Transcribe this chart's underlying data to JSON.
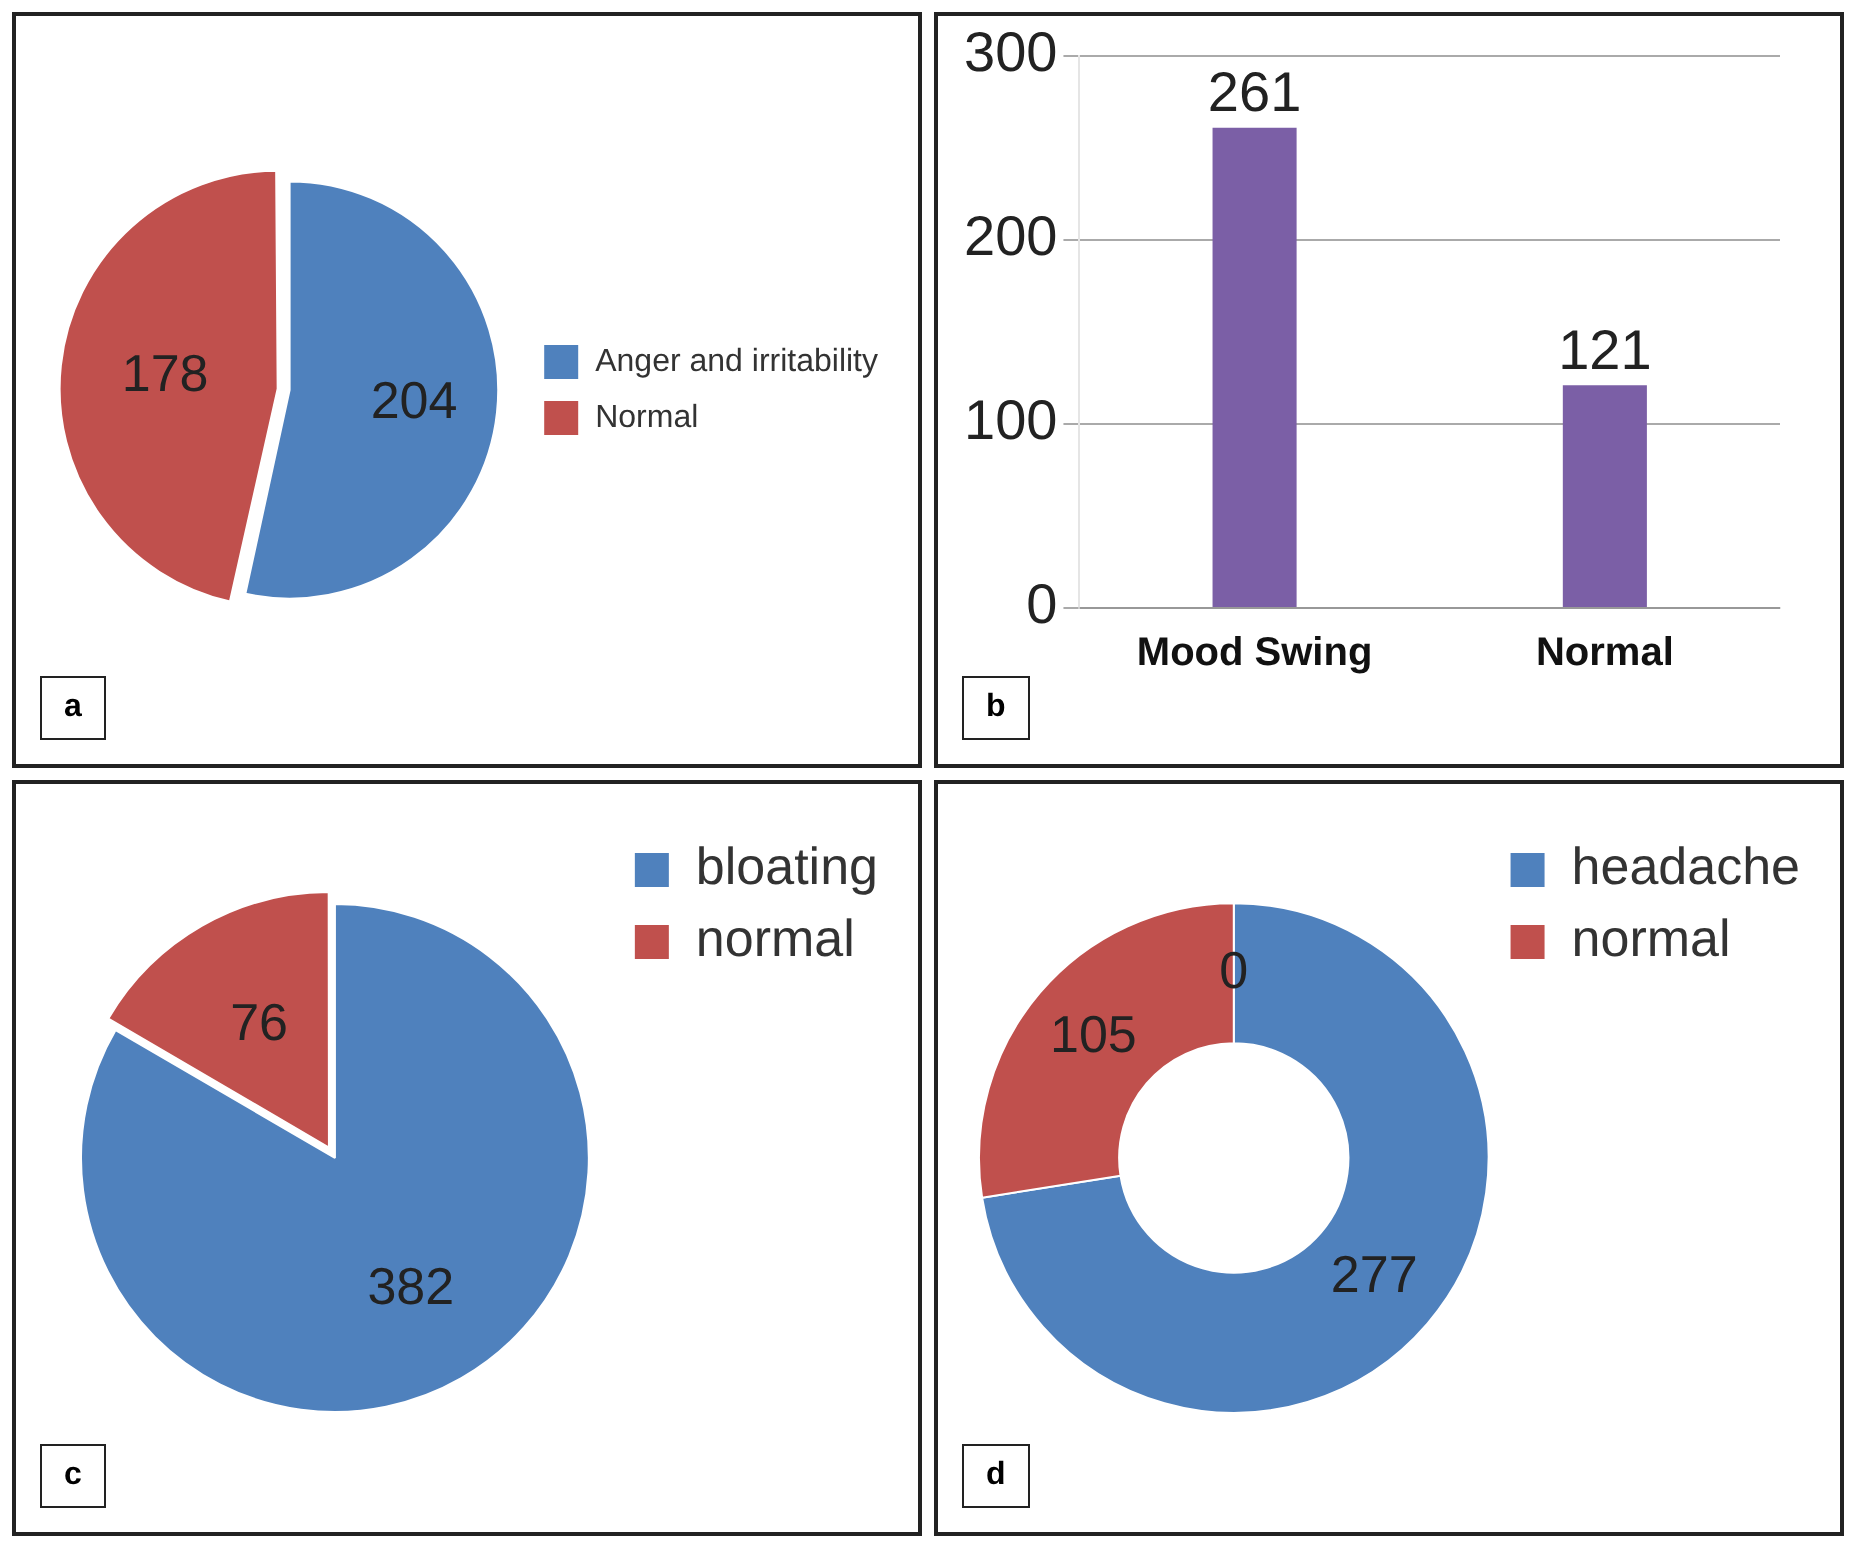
{
  "chart_data": [
    {
      "type": "pie",
      "categories": [
        "Anger and irritability",
        "Normal"
      ],
      "values": [
        204,
        178
      ],
      "colors": [
        "#4f81bd",
        "#c0504d"
      ],
      "data_labels": true,
      "legend": "right",
      "annotations": [
        "a"
      ]
    },
    {
      "type": "bar",
      "categories": [
        "Mood Swing",
        "Normal"
      ],
      "values": [
        261,
        121
      ],
      "color": "#7b5fa6",
      "ylim": [
        0,
        300
      ],
      "yticks": [
        0,
        100,
        200,
        300
      ],
      "grid": "y",
      "data_labels": true,
      "annotations": [
        "b"
      ]
    },
    {
      "type": "pie",
      "categories": [
        "bloating",
        "normal"
      ],
      "values": [
        382,
        76
      ],
      "colors": [
        "#4f81bd",
        "#c0504d"
      ],
      "data_labels": true,
      "legend": "top right",
      "annotations": [
        "c"
      ]
    },
    {
      "type": "donut",
      "categories": [
        "headache",
        "normal"
      ],
      "values": [
        277,
        105
      ],
      "colors": [
        "#4f81bd",
        "#c0504d"
      ],
      "data_labels": true,
      "legend": "top right",
      "annotations": [
        "d",
        "0"
      ]
    }
  ]
}
